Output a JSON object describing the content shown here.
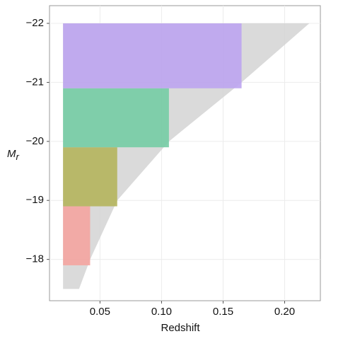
{
  "chart_data": {
    "type": "region",
    "x_label": "Redshift",
    "y_label": {
      "text": "M",
      "subscript": "r"
    },
    "xlim": [
      0.009,
      0.229
    ],
    "ylim": [
      -17.3,
      -22.3
    ],
    "xticks": [
      0.05,
      {
        "value": 0.1,
        "label": "0.10"
      },
      0.15,
      {
        "value": 0.2,
        "label": "0.20"
      }
    ],
    "yticks": [
      {
        "value": -22,
        "label": "−22"
      },
      {
        "value": -21,
        "label": "−21"
      },
      {
        "value": -20,
        "label": "−20"
      },
      {
        "value": -19,
        "label": "−19"
      },
      {
        "value": -18,
        "label": "−18"
      }
    ],
    "grid": true,
    "envelope": {
      "color": "#d4d4d4",
      "x": [
        0.02,
        0.22,
        0.165,
        0.106,
        0.064,
        0.042,
        0.033,
        0.02
      ],
      "y": [
        -22,
        -22,
        -21,
        -20,
        -19,
        -18,
        -17.5,
        -17.5
      ]
    },
    "boxes": [
      {
        "color": "#f4a4a0",
        "x": [
          0.02,
          0.042
        ],
        "y": [
          -17.9,
          -18.9
        ]
      },
      {
        "color": "#b4b45c",
        "x": [
          0.02,
          0.064
        ],
        "y": [
          -18.9,
          -19.9
        ]
      },
      {
        "color": "#74cca4",
        "x": [
          0.02,
          0.106
        ],
        "y": [
          -19.9,
          -20.9
        ]
      },
      {
        "color": "#bca4f0",
        "x": [
          0.02,
          0.165
        ],
        "y": [
          -20.9,
          -22
        ]
      }
    ]
  }
}
